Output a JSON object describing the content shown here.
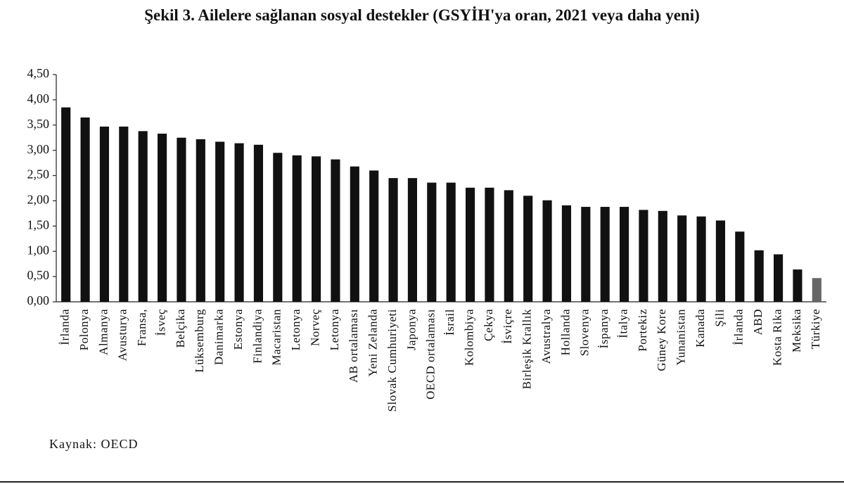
{
  "chart_data": {
    "type": "bar",
    "title": "Şekil 3. Ailelere sağlanan sosyal destekler (GSYİH'ya oran, 2021 veya daha yeni)",
    "source": "Kaynak: OECD",
    "categories": [
      "İrlanda",
      "Polonya",
      "Almanya",
      "Avusturya",
      "Fransa,",
      "İsveç",
      "Belçika",
      "Lüksemburg",
      "Danimarka",
      "Estonya",
      "Finlandiya",
      "Macaristan",
      "Letonya",
      "Norveç",
      "Letonya",
      "AB ortalaması",
      "Yeni Zelanda",
      "Slovak Cumhuriyeti",
      "Japonya",
      "OECD ortalaması",
      "İsrail",
      "Kolombiya",
      "Çekya",
      "İsviçre",
      "Birleşik Krallık",
      "Avustralya",
      "Hollanda",
      "Slovenya",
      "İspanya",
      "İtalya",
      "Portekiz",
      "Güney Kore",
      "Yunanistan",
      "Kanada",
      "Şili",
      "İrlanda",
      "ABD",
      "Kosta Rika",
      "Meksika",
      "Türkiye"
    ],
    "values": [
      3.85,
      3.65,
      3.47,
      3.47,
      3.38,
      3.33,
      3.25,
      3.22,
      3.17,
      3.14,
      3.11,
      2.95,
      2.9,
      2.88,
      2.82,
      2.68,
      2.6,
      2.45,
      2.45,
      2.36,
      2.36,
      2.26,
      2.26,
      2.21,
      2.1,
      2.01,
      1.91,
      1.88,
      1.88,
      1.88,
      1.82,
      1.8,
      1.71,
      1.69,
      1.61,
      1.39,
      1.02,
      0.94,
      0.64,
      0.47
    ],
    "colors": [
      "#111111",
      "#111111",
      "#111111",
      "#111111",
      "#111111",
      "#111111",
      "#111111",
      "#111111",
      "#111111",
      "#111111",
      "#111111",
      "#111111",
      "#111111",
      "#111111",
      "#111111",
      "#111111",
      "#111111",
      "#111111",
      "#111111",
      "#111111",
      "#111111",
      "#111111",
      "#111111",
      "#111111",
      "#111111",
      "#111111",
      "#111111",
      "#111111",
      "#111111",
      "#111111",
      "#111111",
      "#111111",
      "#111111",
      "#111111",
      "#111111",
      "#111111",
      "#111111",
      "#111111",
      "#111111",
      "#666666"
    ],
    "ylim": [
      0,
      4.5
    ],
    "yticks": [
      {
        "value": 0,
        "label": "0,00"
      },
      {
        "value": 0.5,
        "label": "0,50"
      },
      {
        "value": 1,
        "label": "1,00"
      },
      {
        "value": 1.5,
        "label": "1,50"
      },
      {
        "value": 2,
        "label": "2,00"
      },
      {
        "value": 2.5,
        "label": "2,50"
      },
      {
        "value": 3,
        "label": "3,00"
      },
      {
        "value": 3.5,
        "label": "3,50"
      },
      {
        "value": 4,
        "label": "4,00"
      },
      {
        "value": 4.5,
        "label": "4,50"
      }
    ],
    "grid": false
  }
}
